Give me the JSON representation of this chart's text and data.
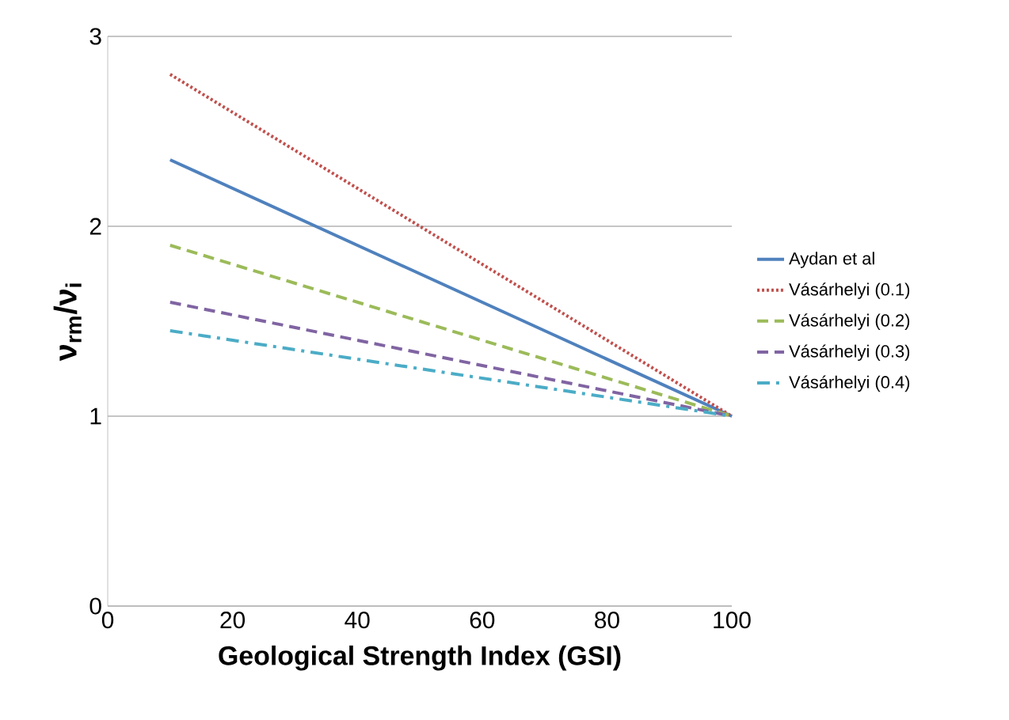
{
  "chart_data": {
    "type": "line",
    "xlabel": "Geological Strength Index (GSI)",
    "ylabel": "ν$_{rm}$/ν$_{i}$",
    "xlim": [
      0,
      100
    ],
    "xticks": [
      0,
      20,
      40,
      60,
      80,
      100
    ],
    "ylim": [
      0,
      3
    ],
    "yticks": [
      0,
      1,
      2,
      3
    ],
    "grid": "y",
    "legend": "right",
    "x": [
      10,
      100
    ],
    "series": [
      {
        "name": "Aydan et al",
        "color": "#4f81bd",
        "line_style": "solid",
        "values": [
          2.35,
          1
        ]
      },
      {
        "name": "Vásárhelyi (0.1)",
        "color": "#c0504d",
        "line_style": "dotted",
        "values": [
          2.8,
          1
        ]
      },
      {
        "name": "Vásárhelyi (0.2)",
        "color": "#9bbb59",
        "line_style": "dashed",
        "values": [
          1.9,
          1
        ]
      },
      {
        "name": "Vásárhelyi (0.3)",
        "color": "#8064a2",
        "line_style": "dashed",
        "values": [
          1.6,
          1
        ]
      },
      {
        "name": "Vásárhelyi (0.4)",
        "color": "#4bacc6",
        "line_style": "dashdot",
        "values": [
          1.45,
          1
        ]
      }
    ]
  }
}
